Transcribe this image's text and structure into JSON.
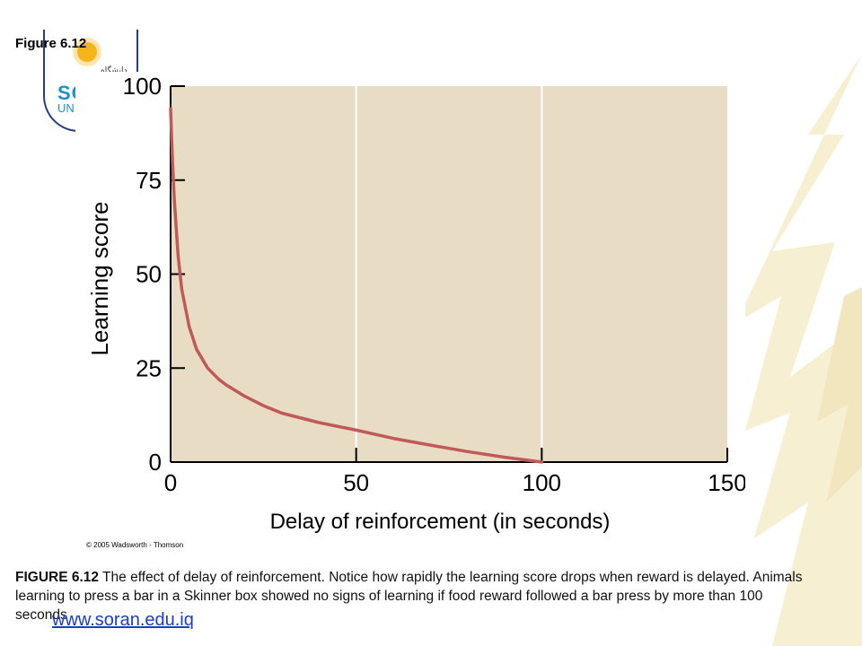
{
  "figure_label": "Figure 6.12",
  "logo": {
    "script_text": "دانشگاه سوران",
    "big_text": "SO",
    "small_text": "UN"
  },
  "copyright": "© 2005 Wadsworth - Thomson",
  "caption": {
    "lead": "FIGURE 6.12",
    "text": " The effect of delay of reinforcement. Notice how rapidly the learning score drops when reward is delayed. Animals learning to press a bar in a Skinner box showed no signs of learning if food reward followed a bar press by more than 100 seconds"
  },
  "website": "www.soran.edu.iq",
  "colors": {
    "plot_bg": "#e8dcc4",
    "curve": "#c05a5a",
    "grid": "#ffffff",
    "decor_yellow": "#f6efd2"
  },
  "chart_data": {
    "type": "line",
    "title": "",
    "xlabel": "Delay of reinforcement (in seconds)",
    "ylabel": "Learning score",
    "xlim": [
      0,
      150
    ],
    "ylim": [
      0,
      100
    ],
    "x_ticks": [
      "0",
      "50",
      "100",
      "150"
    ],
    "y_ticks": [
      "0",
      "25",
      "50",
      "75",
      "100"
    ],
    "grid": "vertical",
    "series": [
      {
        "name": "",
        "x": [
          0,
          0.5,
          1,
          2,
          3,
          5,
          7,
          10,
          13,
          15,
          20,
          25,
          30,
          40,
          50,
          60,
          70,
          80,
          90,
          100
        ],
        "y": [
          94,
          80,
          70,
          55,
          46,
          36,
          30,
          25,
          22,
          20.5,
          17.5,
          15,
          13,
          10.5,
          8.5,
          6.3,
          4.5,
          2.8,
          1.3,
          0
        ]
      }
    ]
  }
}
